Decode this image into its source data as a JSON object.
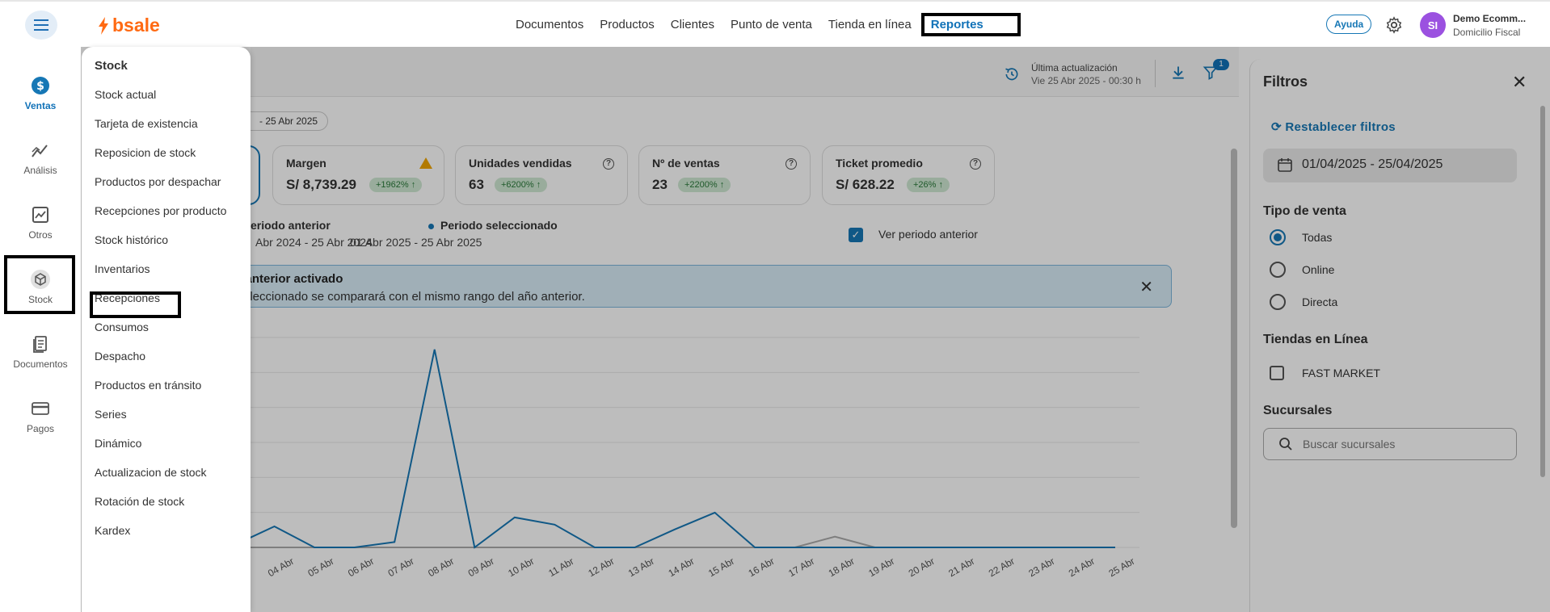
{
  "header": {
    "logo_text": "bsale",
    "nav": [
      "Documentos",
      "Productos",
      "Clientes",
      "Punto de venta",
      "Tienda en línea"
    ],
    "nav_active": "Reportes",
    "help_label": "Ayuda",
    "avatar_initials": "SI",
    "user_name": "Demo Ecomm...",
    "user_sub": "Domicilio Fiscal"
  },
  "rail": {
    "items": [
      {
        "label": "Ventas",
        "icon": "dollar-icon"
      },
      {
        "label": "Análisis",
        "icon": "analytics-icon"
      },
      {
        "label": "Otros",
        "icon": "chart-box-icon"
      },
      {
        "label": "Stock",
        "icon": "cube-icon"
      },
      {
        "label": "Documentos",
        "icon": "documents-icon"
      },
      {
        "label": "Pagos",
        "icon": "card-icon"
      }
    ]
  },
  "menu": {
    "title": "Stock",
    "items": [
      "Stock actual",
      "Tarjeta de existencia",
      "Reposicion de stock",
      "Productos por despachar",
      "Recepciones por producto",
      "Stock histórico",
      "Inventarios",
      "Recepciones",
      "Consumos",
      "Despacho",
      "Productos en tránsito",
      "Series",
      "Dinámico",
      "Actualizacion de stock",
      "Rotación de stock",
      "Kardex"
    ]
  },
  "main": {
    "update_label": "Última actualización",
    "update_date": "Vie 25 Abr 2025 - 00:30 h",
    "filter_badge": "1",
    "date_pill": "- 25 Abr 2025",
    "cards": [
      {
        "title": "",
        "value": "",
        "badge": "% ↑"
      },
      {
        "title": "Margen",
        "value": "S/ 8,739.29",
        "badge": "+1962% ↑"
      },
      {
        "title": "Unidades vendidas",
        "value": "63",
        "badge": "+6200% ↑"
      },
      {
        "title": "Nº de ventas",
        "value": "23",
        "badge": "+2200% ↑"
      },
      {
        "title": "Ticket promedio",
        "value": "S/ 628.22",
        "badge": "+26% ↑"
      }
    ],
    "legend_prev": "eriodo anterior",
    "legend_prev_range": "Abr 2024 - 25 Abr 2024",
    "legend_sel": "Periodo seleccionado",
    "legend_sel_range": "01 Abr 2025 - 25 Abr 2025",
    "show_prev_label": "Ver periodo anterior",
    "alert_title": "do anterior activado",
    "alert_text": "a seleccionado se comparará con el mismo rango del año anterior."
  },
  "chart_data": {
    "type": "line",
    "x": [
      "Abr",
      "04 Abr",
      "05 Abr",
      "06 Abr",
      "07 Abr",
      "08 Abr",
      "09 Abr",
      "10 Abr",
      "11 Abr",
      "12 Abr",
      "13 Abr",
      "14 Abr",
      "15 Abr",
      "16 Abr",
      "17 Abr",
      "18 Abr",
      "19 Abr",
      "20 Abr",
      "21 Abr",
      "22 Abr",
      "23 Abr",
      "24 Abr",
      "25 Abr"
    ],
    "series": [
      {
        "color": "#1677b5",
        "values": [
          0.4,
          3.5,
          0,
          0,
          0.9,
          33,
          0,
          5,
          3.8,
          0,
          0,
          3,
          5.8,
          0,
          0,
          0,
          0,
          0,
          0,
          0,
          0,
          0,
          0
        ]
      },
      {
        "color": "#aaaaaa",
        "values": [
          0,
          0,
          0,
          0,
          0,
          0,
          0,
          0,
          0,
          0,
          0,
          0,
          0,
          0,
          0,
          1.8,
          0,
          0,
          0,
          0,
          0,
          0,
          0
        ]
      }
    ],
    "ylim": [
      0,
      35
    ],
    "grid": true
  },
  "filters": {
    "title": "Filtros",
    "reset_label": "Restablecer filtros",
    "date_range": "01/04/2025 - 25/04/2025",
    "sale_type_title": "Tipo de venta",
    "sale_types": [
      "Todas",
      "Online",
      "Directa"
    ],
    "sale_type_selected": "Todas",
    "stores_title": "Tiendas en Línea",
    "stores": [
      "FAST MARKET"
    ],
    "branches_title": "Sucursales",
    "branches_placeholder": "Buscar sucursales"
  }
}
